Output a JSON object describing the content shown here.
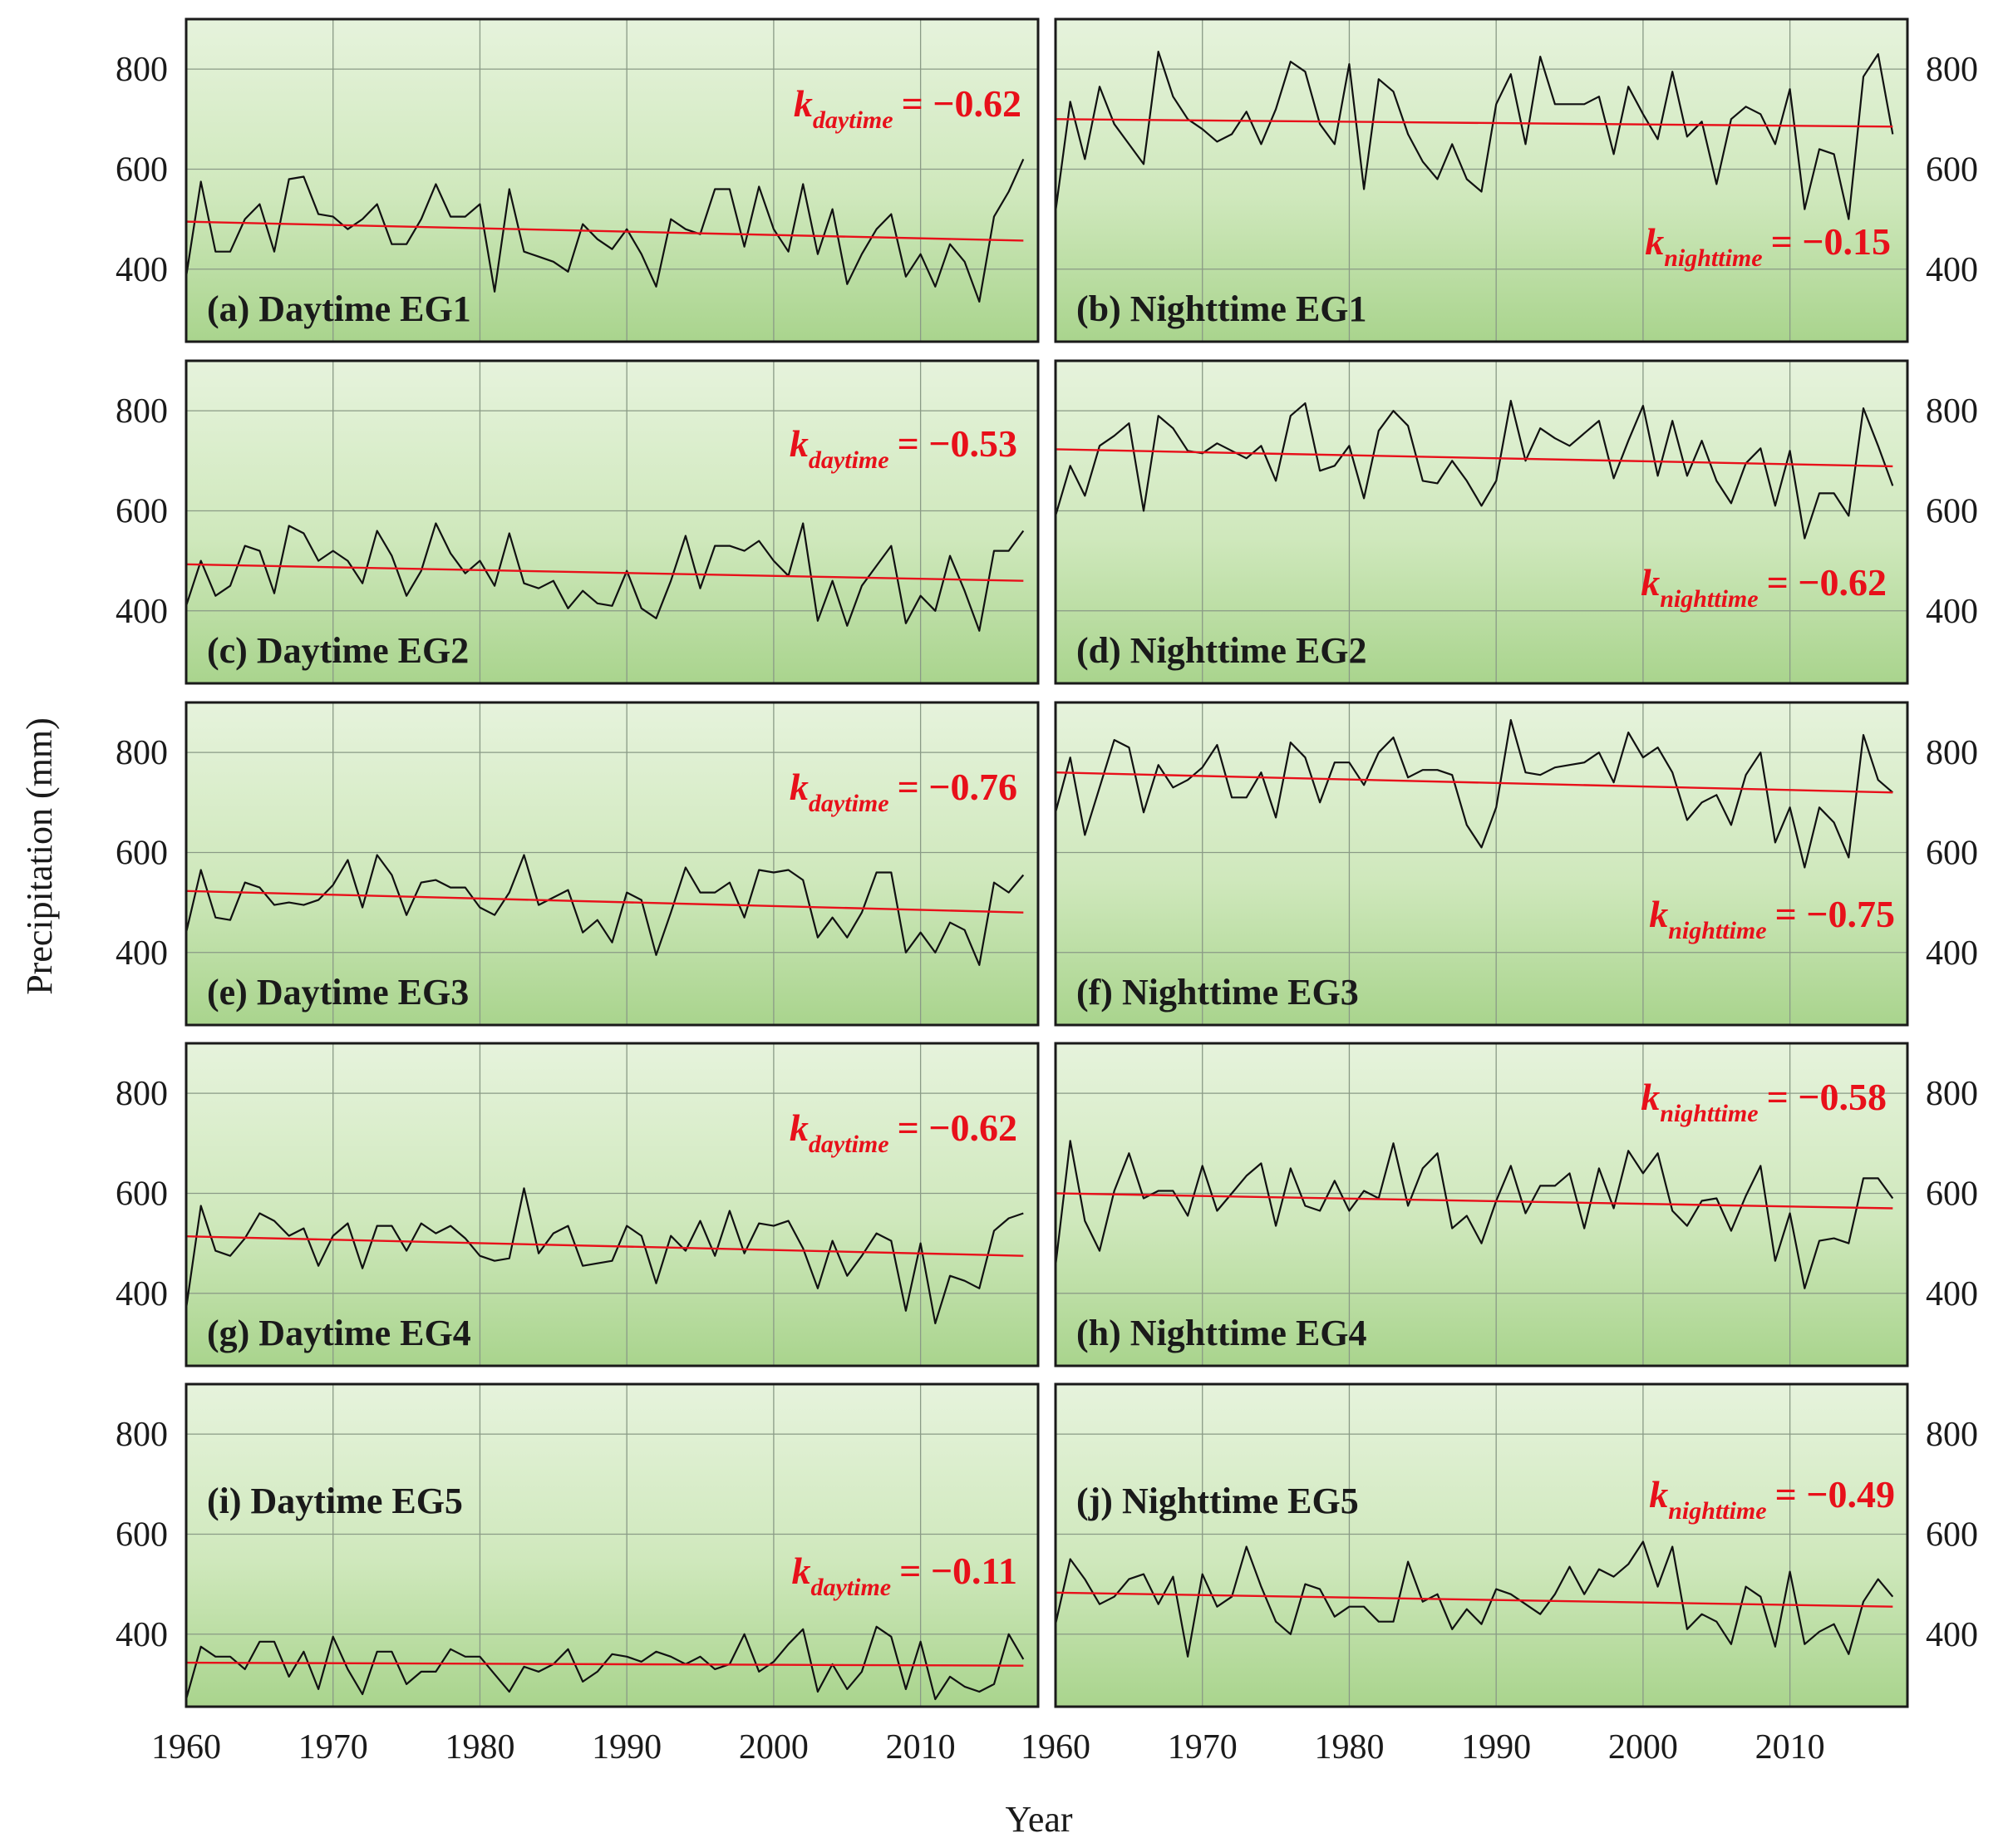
{
  "figure": {
    "xlabel": "Year",
    "ylabel": "Precipitation (mm)"
  },
  "colors": {
    "series": "#111111",
    "trend": "#e8101a",
    "panel_top": "#e6f3dc",
    "panel_bottom": "#a9d48d"
  },
  "chart_data": [
    {
      "type": "line",
      "id": "a",
      "label": "(a) Daytime EG1",
      "k_symbol": "k",
      "k_sub": "daytime",
      "k_value": "= −0.62",
      "xlim": [
        1960,
        2018
      ],
      "ylim": [
        255,
        900
      ],
      "yticks": [
        400,
        600,
        800
      ],
      "xticks": [
        1960,
        1970,
        1980,
        1990,
        2000,
        2010
      ],
      "x_start": 1960,
      "values": [
        385,
        575,
        435,
        435,
        500,
        530,
        435,
        580,
        585,
        510,
        505,
        480,
        500,
        530,
        450,
        450,
        500,
        570,
        505,
        505,
        530,
        355,
        560,
        435,
        425,
        415,
        395,
        490,
        460,
        440,
        480,
        430,
        365,
        500,
        480,
        470,
        560,
        560,
        445,
        565,
        480,
        435,
        570,
        430,
        520,
        370,
        430,
        480,
        510,
        385,
        430,
        365,
        450,
        415,
        335,
        505,
        555,
        620
      ],
      "trend": [
        495,
        457
      ]
    },
    {
      "type": "line",
      "id": "b",
      "label": "(b) Nighttime EG1",
      "k_symbol": "k",
      "k_sub": "nighttime",
      "k_value": "= −0.15",
      "xlim": [
        1960,
        2018
      ],
      "ylim": [
        255,
        900
      ],
      "yticks": [
        400,
        600,
        800
      ],
      "xticks": [
        1960,
        1970,
        1980,
        1990,
        2000,
        2010
      ],
      "x_start": 1960,
      "values": [
        515,
        735,
        620,
        765,
        690,
        650,
        610,
        835,
        745,
        700,
        680,
        655,
        670,
        715,
        650,
        720,
        815,
        795,
        690,
        650,
        810,
        560,
        780,
        755,
        670,
        615,
        580,
        650,
        580,
        555,
        730,
        790,
        650,
        825,
        730,
        730,
        730,
        745,
        630,
        765,
        710,
        660,
        795,
        665,
        695,
        570,
        700,
        725,
        710,
        650,
        760,
        520,
        640,
        630,
        500,
        785,
        830,
        670
      ],
      "trend": [
        700,
        685
      ]
    },
    {
      "type": "line",
      "id": "c",
      "label": "(c) Daytime EG2",
      "k_symbol": "k",
      "k_sub": "daytime",
      "k_value": "= −0.53",
      "xlim": [
        1960,
        2018
      ],
      "ylim": [
        255,
        900
      ],
      "yticks": [
        400,
        600,
        800
      ],
      "xticks": [
        1960,
        1970,
        1980,
        1990,
        2000,
        2010
      ],
      "x_start": 1960,
      "values": [
        410,
        500,
        430,
        450,
        530,
        520,
        435,
        570,
        555,
        500,
        520,
        500,
        455,
        560,
        510,
        430,
        480,
        575,
        515,
        475,
        500,
        450,
        555,
        455,
        445,
        460,
        405,
        440,
        415,
        410,
        480,
        405,
        385,
        460,
        550,
        445,
        530,
        530,
        520,
        540,
        500,
        470,
        575,
        380,
        460,
        370,
        450,
        490,
        530,
        375,
        430,
        400,
        510,
        440,
        360,
        520,
        520,
        560
      ],
      "trend": [
        493,
        460
      ]
    },
    {
      "type": "line",
      "id": "d",
      "label": "(d) Nighttime EG2",
      "k_symbol": "k",
      "k_sub": "nighttime",
      "k_value": "= −0.62",
      "xlim": [
        1960,
        2018
      ],
      "ylim": [
        255,
        900
      ],
      "yticks": [
        400,
        600,
        800
      ],
      "xticks": [
        1960,
        1970,
        1980,
        1990,
        2000,
        2010
      ],
      "x_start": 1960,
      "values": [
        590,
        690,
        630,
        730,
        750,
        775,
        600,
        790,
        765,
        720,
        715,
        735,
        720,
        705,
        730,
        660,
        790,
        815,
        680,
        690,
        730,
        625,
        760,
        800,
        770,
        660,
        655,
        700,
        660,
        610,
        660,
        820,
        700,
        765,
        745,
        730,
        755,
        780,
        665,
        740,
        810,
        670,
        780,
        670,
        740,
        660,
        615,
        695,
        725,
        610,
        720,
        545,
        635,
        635,
        590,
        805,
        730,
        650
      ],
      "trend": [
        723,
        689
      ]
    },
    {
      "type": "line",
      "id": "e",
      "label": "(e) Daytime EG3",
      "k_symbol": "k",
      "k_sub": "daytime",
      "k_value": "= −0.76",
      "xlim": [
        1960,
        2018
      ],
      "ylim": [
        255,
        900
      ],
      "yticks": [
        400,
        600,
        800
      ],
      "xticks": [
        1960,
        1970,
        1980,
        1990,
        2000,
        2010
      ],
      "x_start": 1960,
      "values": [
        440,
        565,
        470,
        465,
        540,
        530,
        495,
        500,
        495,
        505,
        535,
        585,
        490,
        595,
        555,
        475,
        540,
        545,
        530,
        530,
        490,
        475,
        520,
        595,
        495,
        510,
        525,
        440,
        465,
        420,
        520,
        505,
        395,
        480,
        570,
        520,
        520,
        540,
        470,
        565,
        560,
        565,
        545,
        430,
        470,
        430,
        480,
        560,
        560,
        400,
        440,
        400,
        460,
        445,
        375,
        540,
        520,
        555
      ],
      "trend": [
        523,
        480
      ]
    },
    {
      "type": "line",
      "id": "f",
      "label": "(f) Nighttime EG3",
      "k_symbol": "k",
      "k_sub": "nighttime",
      "k_value": "= −0.75",
      "xlim": [
        1960,
        2018
      ],
      "ylim": [
        255,
        900
      ],
      "yticks": [
        400,
        600,
        800
      ],
      "xticks": [
        1960,
        1970,
        1980,
        1990,
        2000,
        2010
      ],
      "x_start": 1960,
      "values": [
        680,
        790,
        635,
        730,
        825,
        810,
        680,
        775,
        730,
        745,
        770,
        815,
        710,
        710,
        760,
        670,
        820,
        790,
        700,
        780,
        780,
        735,
        800,
        830,
        750,
        765,
        765,
        755,
        655,
        610,
        690,
        865,
        760,
        755,
        770,
        775,
        780,
        800,
        740,
        840,
        790,
        810,
        760,
        665,
        700,
        715,
        655,
        755,
        800,
        620,
        690,
        570,
        690,
        660,
        590,
        835,
        745,
        720
      ],
      "trend": [
        760,
        720
      ]
    },
    {
      "type": "line",
      "id": "g",
      "label": "(g) Daytime EG4",
      "k_symbol": "k",
      "k_sub": "daytime",
      "k_value": "= −0.62",
      "xlim": [
        1960,
        2018
      ],
      "ylim": [
        255,
        900
      ],
      "yticks": [
        400,
        600,
        800
      ],
      "xticks": [
        1960,
        1970,
        1980,
        1990,
        2000,
        2010
      ],
      "x_start": 1960,
      "values": [
        370,
        575,
        485,
        475,
        510,
        560,
        545,
        515,
        530,
        455,
        515,
        540,
        450,
        535,
        535,
        485,
        540,
        520,
        535,
        510,
        475,
        465,
        470,
        610,
        480,
        520,
        535,
        455,
        460,
        465,
        535,
        515,
        420,
        515,
        485,
        545,
        475,
        565,
        480,
        540,
        535,
        545,
        490,
        410,
        505,
        435,
        475,
        520,
        505,
        365,
        500,
        340,
        435,
        425,
        410,
        525,
        550,
        560
      ],
      "trend": [
        514,
        475
      ]
    },
    {
      "type": "line",
      "id": "h",
      "label": "(h) Nighttime EG4",
      "k_symbol": "k",
      "k_sub": "nighttime",
      "k_value": "= −0.58",
      "xlim": [
        1960,
        2018
      ],
      "ylim": [
        255,
        900
      ],
      "yticks": [
        400,
        600,
        800
      ],
      "xticks": [
        1960,
        1970,
        1980,
        1990,
        2000,
        2010
      ],
      "x_start": 1960,
      "values": [
        455,
        705,
        545,
        485,
        605,
        680,
        590,
        605,
        605,
        555,
        655,
        565,
        600,
        635,
        660,
        535,
        650,
        575,
        565,
        625,
        565,
        605,
        590,
        700,
        575,
        650,
        680,
        530,
        555,
        500,
        585,
        655,
        560,
        615,
        615,
        640,
        530,
        650,
        570,
        685,
        640,
        680,
        565,
        535,
        585,
        590,
        525,
        595,
        655,
        465,
        560,
        410,
        505,
        510,
        500,
        630,
        630,
        590
      ],
      "trend": [
        600,
        570
      ]
    },
    {
      "type": "line",
      "id": "i",
      "label": "(i) Daytime EG5",
      "k_symbol": "k",
      "k_sub": "daytime",
      "k_value": "= −0.11",
      "xlim": [
        1960,
        2018
      ],
      "ylim": [
        255,
        900
      ],
      "yticks": [
        400,
        600,
        800
      ],
      "xticks": [
        1960,
        1970,
        1980,
        1990,
        2000,
        2010
      ],
      "x_start": 1960,
      "values": [
        270,
        375,
        355,
        355,
        330,
        385,
        385,
        315,
        365,
        290,
        395,
        330,
        280,
        365,
        365,
        300,
        325,
        325,
        370,
        355,
        355,
        320,
        285,
        335,
        325,
        340,
        370,
        305,
        325,
        360,
        355,
        345,
        365,
        355,
        340,
        355,
        330,
        340,
        400,
        325,
        345,
        380,
        410,
        285,
        340,
        290,
        325,
        415,
        395,
        290,
        385,
        270,
        315,
        295,
        285,
        300,
        400,
        350
      ],
      "trend": [
        343,
        337
      ]
    },
    {
      "type": "line",
      "id": "j",
      "label": "(j) Nighttime EG5",
      "k_symbol": "k",
      "k_sub": "nighttime",
      "k_value": "= −0.49",
      "xlim": [
        1960,
        2018
      ],
      "ylim": [
        255,
        900
      ],
      "yticks": [
        400,
        600,
        800
      ],
      "xticks": [
        1960,
        1970,
        1980,
        1990,
        2000,
        2010
      ],
      "x_start": 1960,
      "values": [
        420,
        550,
        510,
        460,
        475,
        510,
        520,
        460,
        515,
        355,
        520,
        455,
        475,
        575,
        495,
        425,
        400,
        500,
        490,
        435,
        455,
        455,
        425,
        425,
        545,
        465,
        480,
        410,
        450,
        420,
        490,
        480,
        460,
        440,
        480,
        535,
        480,
        530,
        515,
        540,
        585,
        495,
        575,
        410,
        440,
        425,
        380,
        495,
        475,
        375,
        525,
        380,
        405,
        420,
        360,
        465,
        510,
        475
      ],
      "trend": [
        483,
        455
      ]
    }
  ]
}
